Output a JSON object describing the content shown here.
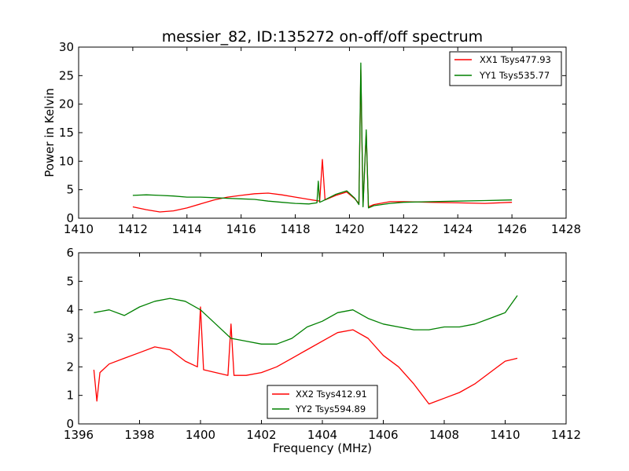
{
  "title": "messier_82, ID:135272 on-off/off spectrum",
  "colors": {
    "red": "#ff0000",
    "green": "#008000"
  },
  "chart_data": [
    {
      "type": "line",
      "xlabel": "",
      "ylabel": "Power in Kelvin",
      "xlim": [
        1410,
        1428
      ],
      "ylim": [
        0,
        30
      ],
      "xticks": [
        1410,
        1412,
        1414,
        1416,
        1418,
        1420,
        1422,
        1424,
        1426,
        1428
      ],
      "yticks": [
        0,
        5,
        10,
        15,
        20,
        25,
        30
      ],
      "legend_position": "top-right",
      "series": [
        {
          "name": "XX1 Tsys477.93",
          "color": "#ff0000",
          "x": [
            1412.0,
            1412.5,
            1413.0,
            1413.5,
            1414.0,
            1414.5,
            1415.0,
            1415.5,
            1416.0,
            1416.5,
            1417.0,
            1417.5,
            1418.0,
            1418.5,
            1418.9,
            1419.0,
            1419.1,
            1419.5,
            1419.9,
            1420.2,
            1420.35,
            1420.42,
            1420.5,
            1420.62,
            1420.7,
            1420.9,
            1421.5,
            1422.0,
            1423.0,
            1424.0,
            1425.0,
            1426.0
          ],
          "y": [
            2.0,
            1.5,
            1.1,
            1.3,
            1.8,
            2.5,
            3.2,
            3.7,
            4.0,
            4.3,
            4.4,
            4.1,
            3.7,
            3.3,
            3.0,
            10.3,
            3.2,
            4.0,
            4.6,
            3.4,
            2.6,
            26.0,
            2.2,
            15.0,
            2.0,
            2.4,
            2.9,
            2.9,
            2.8,
            2.7,
            2.6,
            2.8
          ]
        },
        {
          "name": "YY1 Tsys535.77",
          "color": "#008000",
          "x": [
            1412.0,
            1412.5,
            1413.0,
            1413.5,
            1414.0,
            1414.5,
            1415.0,
            1415.5,
            1416.0,
            1416.5,
            1417.0,
            1417.5,
            1418.0,
            1418.5,
            1418.8,
            1418.85,
            1418.9,
            1419.0,
            1419.5,
            1419.9,
            1420.2,
            1420.35,
            1420.42,
            1420.5,
            1420.62,
            1420.7,
            1420.9,
            1421.5,
            1422.0,
            1423.0,
            1424.0,
            1425.0,
            1426.0
          ],
          "y": [
            4.0,
            4.1,
            4.0,
            3.9,
            3.7,
            3.7,
            3.6,
            3.5,
            3.4,
            3.3,
            3.0,
            2.8,
            2.6,
            2.5,
            2.7,
            6.5,
            2.8,
            3.0,
            4.2,
            4.8,
            3.5,
            2.4,
            27.2,
            2.0,
            15.5,
            1.8,
            2.2,
            2.6,
            2.8,
            2.9,
            3.0,
            3.1,
            3.2
          ]
        }
      ]
    },
    {
      "type": "line",
      "xlabel": "Frequency (MHz)",
      "ylabel": "",
      "xlim": [
        1396,
        1412
      ],
      "ylim": [
        0,
        6
      ],
      "xticks": [
        1396,
        1398,
        1400,
        1402,
        1404,
        1406,
        1408,
        1410,
        1412
      ],
      "yticks": [
        0,
        1,
        2,
        3,
        4,
        5,
        6
      ],
      "legend_position": "lower-center",
      "series": [
        {
          "name": "XX2 Tsys412.91",
          "color": "#ff0000",
          "x": [
            1396.5,
            1396.6,
            1396.7,
            1397.0,
            1397.5,
            1398.0,
            1398.5,
            1399.0,
            1399.5,
            1399.9,
            1400.0,
            1400.1,
            1400.5,
            1400.9,
            1401.0,
            1401.1,
            1401.5,
            1402.0,
            1402.5,
            1403.0,
            1403.5,
            1404.0,
            1404.5,
            1405.0,
            1405.5,
            1406.0,
            1406.5,
            1407.0,
            1407.5,
            1408.0,
            1408.5,
            1409.0,
            1409.5,
            1410.0,
            1410.4
          ],
          "y": [
            1.9,
            0.8,
            1.8,
            2.1,
            2.3,
            2.5,
            2.7,
            2.6,
            2.2,
            2.0,
            4.1,
            1.9,
            1.8,
            1.7,
            3.5,
            1.7,
            1.7,
            1.8,
            2.0,
            2.3,
            2.6,
            2.9,
            3.2,
            3.3,
            3.0,
            2.4,
            2.0,
            1.4,
            0.7,
            0.9,
            1.1,
            1.4,
            1.8,
            2.2,
            2.3
          ]
        },
        {
          "name": "YY2 Tsys594.89",
          "color": "#008000",
          "x": [
            1396.5,
            1397.0,
            1397.5,
            1398.0,
            1398.5,
            1399.0,
            1399.5,
            1400.0,
            1400.5,
            1401.0,
            1401.5,
            1402.0,
            1402.5,
            1403.0,
            1403.5,
            1404.0,
            1404.5,
            1405.0,
            1405.5,
            1406.0,
            1406.5,
            1407.0,
            1407.5,
            1408.0,
            1408.5,
            1409.0,
            1409.5,
            1410.0,
            1410.4
          ],
          "y": [
            3.9,
            4.0,
            3.8,
            4.1,
            4.3,
            4.4,
            4.3,
            4.0,
            3.5,
            3.0,
            2.9,
            2.8,
            2.8,
            3.0,
            3.4,
            3.6,
            3.9,
            4.0,
            3.7,
            3.5,
            3.4,
            3.3,
            3.3,
            3.4,
            3.4,
            3.5,
            3.7,
            3.9,
            4.5
          ]
        }
      ]
    }
  ]
}
